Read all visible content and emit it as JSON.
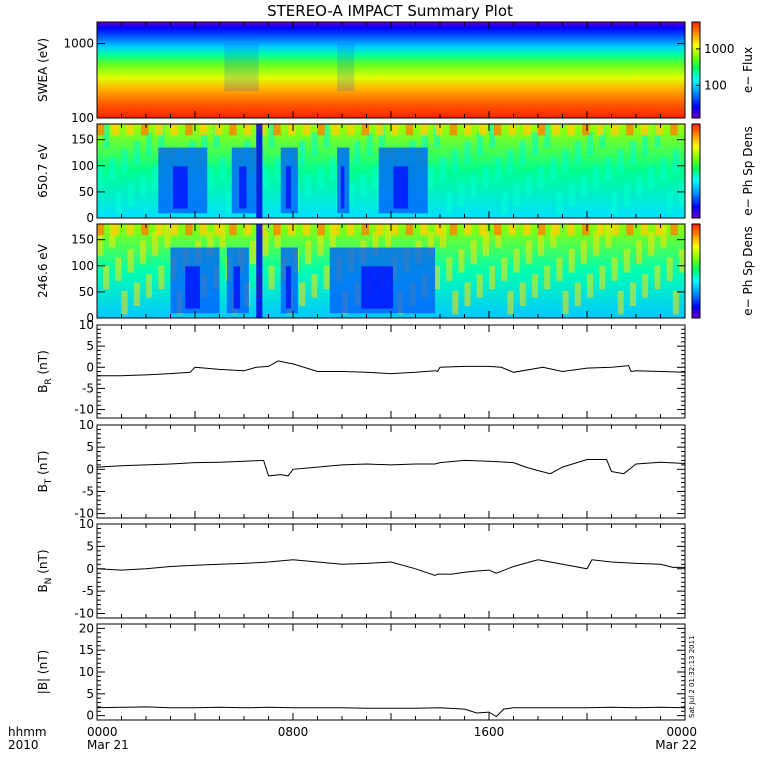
{
  "title": "STEREO-A IMPACT Summary Plot",
  "time_axis": {
    "row1": "hhmm",
    "row2": "2010",
    "ticks": [
      {
        "label": "0000",
        "sub": "Mar 21",
        "hour": 0
      },
      {
        "label": "0800",
        "sub": "",
        "hour": 8
      },
      {
        "label": "1600",
        "sub": "",
        "hour": 16
      },
      {
        "label": "0000",
        "sub": "Mar 22",
        "hour": 24
      }
    ]
  },
  "stamp": "Sat Jul  2 01:32:13 2011",
  "colors": {
    "spectrogram_scale": [
      "#6a00c8",
      "#0000ff",
      "#00a0ff",
      "#00ffff",
      "#00ff60",
      "#80ff00",
      "#ffff00",
      "#ff9000",
      "#ff2000"
    ],
    "line": "#000000"
  },
  "chart_data": [
    {
      "type": "heatmap",
      "ylabel": "SWEA (eV)",
      "yscale": "log",
      "ylim": [
        100,
        1950
      ],
      "yticks": [
        "1000",
        "100"
      ],
      "colorbar": {
        "label": "e− Flux",
        "ticks": [
          "1000",
          "100"
        ],
        "scale": "log"
      },
      "description_values": {
        "x_hours": [
          0,
          24
        ],
        "energy_eV": [
          100,
          1950
        ]
      }
    },
    {
      "type": "heatmap",
      "ylabel": "650.7 eV",
      "ylim": [
        0,
        180
      ],
      "yticks": [
        "0",
        "50",
        "100",
        "150"
      ],
      "colorbar": {
        "label": "e− Ph Sp Dens"
      },
      "low_intervals_hours": [
        [
          2.5,
          4.5
        ],
        [
          5.5,
          6.5
        ],
        [
          7.5,
          8.2
        ],
        [
          9.8,
          10.3
        ],
        [
          11.5,
          13.5
        ]
      ]
    },
    {
      "type": "heatmap",
      "ylabel": "246.6 eV",
      "ylim": [
        0,
        180
      ],
      "yticks": [
        "0",
        "50",
        "100",
        "150"
      ],
      "colorbar": {
        "label": "e− Ph Sp Dens"
      },
      "low_intervals_hours": [
        [
          3.0,
          5.0
        ],
        [
          5.3,
          6.2
        ],
        [
          7.5,
          8.2
        ],
        [
          9.5,
          13.8
        ]
      ]
    },
    {
      "type": "line",
      "ylabel": "B",
      "ylabel_sub": "R",
      "ylabel_unit": "(nT)",
      "ylim": [
        -12,
        10
      ],
      "yticks": [
        "10",
        "5",
        "0",
        "-5",
        "-10"
      ],
      "x_hours": [
        0,
        1,
        2,
        3,
        3.8,
        4,
        5,
        6,
        6.5,
        7,
        7.4,
        7.8,
        8,
        9,
        10,
        11,
        12,
        13,
        13.8,
        13.9,
        14,
        15,
        16,
        16.5,
        17,
        18,
        18.2,
        19,
        20,
        21,
        21.7,
        21.8,
        22,
        23,
        24
      ],
      "values": [
        -2,
        -2,
        -1.8,
        -1.5,
        -1.2,
        0,
        -0.5,
        -0.8,
        0,
        0.2,
        1.5,
        1,
        0.8,
        -1,
        -1,
        -1.2,
        -1.5,
        -1.2,
        -0.8,
        -1,
        0,
        0.2,
        0.2,
        0,
        -1.2,
        -0.2,
        0,
        -1,
        -0.2,
        0,
        0.4,
        -1,
        -0.8,
        -1,
        -1.2
      ]
    },
    {
      "type": "line",
      "ylabel": "B",
      "ylabel_sub": "T",
      "ylabel_unit": "(nT)",
      "ylim": [
        -11,
        10
      ],
      "yticks": [
        "10",
        "5",
        "0",
        "-5",
        "-10"
      ],
      "x_hours": [
        0,
        1,
        2,
        3,
        4,
        5,
        6,
        6.8,
        7,
        7.5,
        7.8,
        8,
        9,
        10,
        11,
        12,
        13,
        13.8,
        14,
        15,
        16,
        17,
        17.5,
        18,
        18.5,
        19,
        20,
        20.8,
        21,
        21.5,
        22,
        23,
        24
      ],
      "values": [
        0.5,
        0.8,
        1,
        1.2,
        1.5,
        1.6,
        1.8,
        2,
        -1.5,
        -1.2,
        -1.5,
        0,
        0.5,
        1,
        1.2,
        1,
        1.2,
        1.2,
        1.5,
        2,
        1.8,
        1.5,
        0.5,
        -0.3,
        -1,
        0.5,
        2.2,
        2.2,
        -0.5,
        -1,
        1.2,
        1.6,
        1.3
      ]
    },
    {
      "type": "line",
      "ylabel": "B",
      "ylabel_sub": "N",
      "ylabel_unit": "(nT)",
      "ylim": [
        -11,
        10
      ],
      "yticks": [
        "10",
        "5",
        "0",
        "-5",
        "-10"
      ],
      "x_hours": [
        0,
        1,
        2,
        3,
        4,
        5,
        6,
        7,
        8,
        9,
        10,
        11,
        12,
        13,
        13.8,
        13.9,
        14.5,
        15,
        15.5,
        16,
        16.3,
        17,
        18,
        18.5,
        19,
        19.5,
        20,
        20.2,
        21,
        22,
        23,
        23.5,
        24
      ],
      "values": [
        0,
        -0.3,
        0,
        0.5,
        0.8,
        1,
        1.2,
        1.5,
        2,
        1.5,
        1,
        1.2,
        1.5,
        0,
        -1.5,
        -1.2,
        -1.2,
        -0.8,
        -0.5,
        -0.3,
        -1,
        0.5,
        2,
        1.5,
        1,
        0.5,
        0,
        2,
        1.5,
        1.2,
        1,
        0.3,
        0.3
      ]
    },
    {
      "type": "line",
      "ylabel": "|B| (nT)",
      "ylim": [
        -1,
        21
      ],
      "yticks": [
        "20",
        "15",
        "10",
        "5",
        "0"
      ],
      "x_hours": [
        0,
        1,
        2,
        3,
        4,
        5,
        6,
        7,
        8,
        9,
        10,
        11,
        12,
        13,
        14,
        15,
        15.5,
        16,
        16.3,
        16.6,
        17,
        18,
        19,
        20,
        21,
        22,
        23,
        24
      ],
      "values": [
        1.8,
        1.9,
        2,
        1.8,
        1.8,
        1.9,
        1.8,
        1.9,
        1.8,
        1.8,
        1.8,
        1.7,
        1.7,
        1.7,
        1.8,
        1.5,
        0.6,
        0.8,
        -0.2,
        1.5,
        1.8,
        1.8,
        1.8,
        1.8,
        1.9,
        1.8,
        1.9,
        1.8
      ]
    }
  ]
}
